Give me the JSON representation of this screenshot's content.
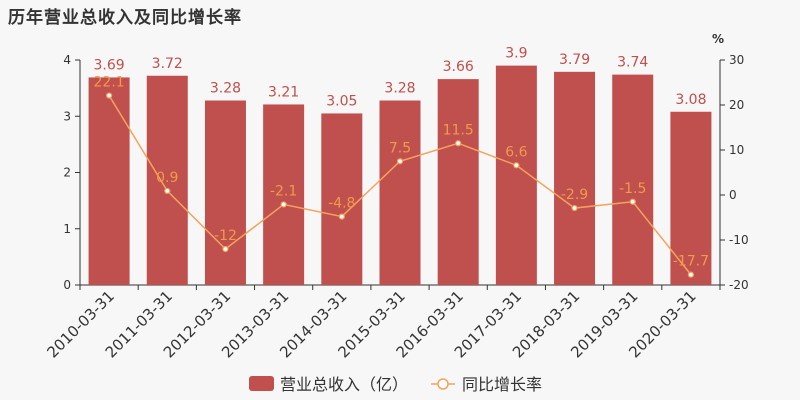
{
  "title": "历年营业总收入及同比增长率",
  "colors": {
    "bar": "#c0504d",
    "line": "#f5a25d",
    "rate_label": "#f09a4a",
    "axis": "#333333"
  },
  "chart_data": {
    "type": "bar",
    "title": "历年营业总收入及同比增长率",
    "categories": [
      "2010-03-31",
      "2011-03-31",
      "2012-03-31",
      "2013-03-31",
      "2014-03-31",
      "2015-03-31",
      "2016-03-31",
      "2017-03-31",
      "2018-03-31",
      "2019-03-31",
      "2020-03-31"
    ],
    "series": [
      {
        "name": "营业总收入（亿）",
        "type": "bar",
        "axis": "left",
        "values": [
          3.69,
          3.72,
          3.28,
          3.21,
          3.05,
          3.28,
          3.66,
          3.9,
          3.79,
          3.74,
          3.08
        ],
        "labels": [
          "3.69",
          "3.72",
          "3.28",
          "3.21",
          "3.05",
          "3.28",
          "3.66",
          "3.9",
          "3.79",
          "3.74",
          "3.08"
        ]
      },
      {
        "name": "同比增长率",
        "type": "line",
        "axis": "right",
        "values": [
          22.1,
          0.9,
          -12,
          -2.1,
          -4.8,
          7.5,
          11.5,
          6.6,
          -2.9,
          -1.5,
          -17.7
        ],
        "labels": [
          "22.1",
          "0.9",
          "-12",
          "-2.1",
          "-4.8",
          "7.5",
          "11.5",
          "6.6",
          "-2.9",
          "-1.5",
          "-17.7"
        ]
      }
    ],
    "y_left": {
      "min": 0,
      "max": 4,
      "ticks": [
        "0",
        "1",
        "2",
        "3",
        "4"
      ]
    },
    "y_right": {
      "min": -20,
      "max": 30,
      "unit": "%",
      "ticks": [
        "-20",
        "-10",
        "0",
        "10",
        "20",
        "30"
      ]
    },
    "grid": false,
    "legend": "bottom-center"
  }
}
